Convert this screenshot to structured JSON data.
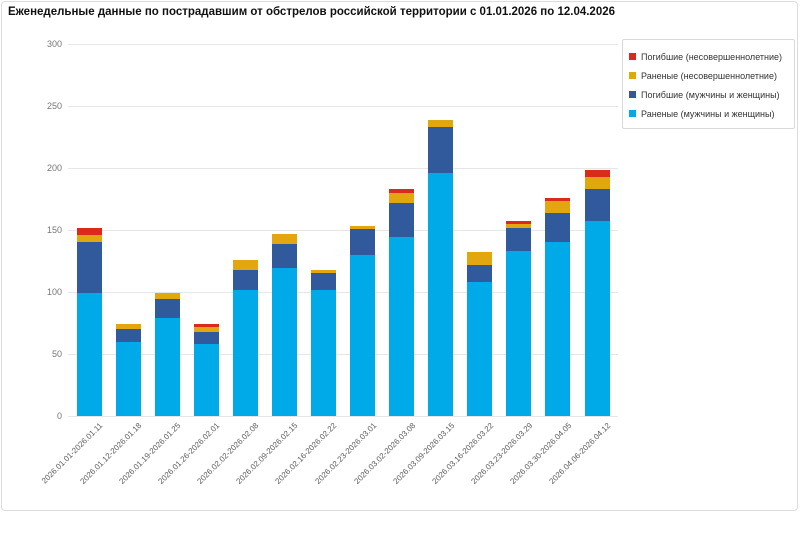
{
  "chart_data": {
    "type": "bar",
    "stacked": true,
    "title": "Еженедельные данные по пострадавшим от обстрелов российской территории с 01.01.2026 по 12.04.2026",
    "categories": [
      "2026.01.01-2026.01.11",
      "2026.01.12-2026.01.18",
      "2026.01.19-2026.01.25",
      "2026.01.26-2026.02.01",
      "2026.02.02-2026.02.08",
      "2026.02.09-2026.02.15",
      "2026.02.16-2026.02.22",
      "2026.02.23-2026.03.01",
      "2026.03.02-2026.03.08",
      "2026.03.09-2026.03.15",
      "2026.03.16-2026.03.22",
      "2026.03.23-2026.03.29",
      "2026.03.30-2026.04.05",
      "2026.04.06-2026.04.12"
    ],
    "series": [
      {
        "name": "Раненые (мужчины и женщины)",
        "color": "#00aae8",
        "values": [
          99,
          60,
          79,
          58,
          102,
          119,
          102,
          130,
          144,
          196,
          108,
          133,
          140,
          157
        ]
      },
      {
        "name": "Погибшие (мужчины и женщины)",
        "color": "#315a9d",
        "values": [
          41,
          10,
          15,
          10,
          16,
          20,
          13,
          21,
          28,
          37,
          14,
          19,
          24,
          26
        ]
      },
      {
        "name": "Раненые (несовершеннолетние)",
        "color": "#e2a60e",
        "values": [
          6,
          4,
          5,
          4,
          8,
          8,
          3,
          2,
          8,
          6,
          10,
          3,
          9,
          10
        ]
      },
      {
        "name": "Погибшие (несовершеннолетние)",
        "color": "#d92a1c",
        "values": [
          6,
          0,
          0,
          2,
          0,
          0,
          0,
          0,
          3,
          0,
          0,
          2,
          3,
          5
        ]
      }
    ],
    "totals": [
      152,
      74,
      99,
      74,
      126,
      147,
      118,
      153,
      183,
      239,
      132,
      157,
      176,
      198
    ],
    "ylim": [
      0,
      300
    ],
    "yticks": [
      0,
      50,
      100,
      150,
      200,
      250,
      300
    ],
    "grid": true,
    "legend_position": "top-right",
    "legend_order": "reversed"
  }
}
